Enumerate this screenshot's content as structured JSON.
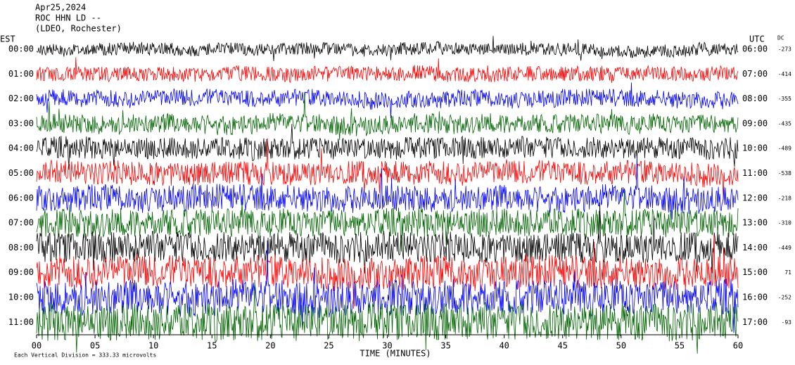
{
  "chart_data": {
    "type": "helicorder",
    "title_lines": [
      "Apr25,2024",
      "ROC HHN LD --",
      "(LDEO, Rochester)"
    ],
    "left_label": "EST",
    "right_label": "UTC",
    "dc_label": "DC",
    "x_label": "TIME (MINUTES)",
    "footnote": "Each Vertical Division = 333.33 microvolts",
    "xlim": [
      0,
      60
    ],
    "xticks": [
      {
        "value": 0,
        "label": "00"
      },
      {
        "value": 5,
        "label": "05"
      },
      10,
      15,
      20,
      25,
      30,
      35,
      40,
      45,
      50,
      55,
      60
    ],
    "rows": [
      {
        "est": "00:00",
        "utc": "06:00",
        "dc": -273,
        "color": "#000000"
      },
      {
        "est": "01:00",
        "utc": "07:00",
        "dc": -414,
        "color": "#ff0000"
      },
      {
        "est": "02:00",
        "utc": "08:00",
        "dc": -355,
        "color": "#0000ff"
      },
      {
        "est": "03:00",
        "utc": "09:00",
        "dc": -435,
        "color": "#006400"
      },
      {
        "est": "04:00",
        "utc": "10:00",
        "dc": -489,
        "color": "#000000"
      },
      {
        "est": "05:00",
        "utc": "11:00",
        "dc": -538,
        "color": "#ff0000"
      },
      {
        "est": "06:00",
        "utc": "12:00",
        "dc": -218,
        "color": "#0000ff"
      },
      {
        "est": "07:00",
        "utc": "13:00",
        "dc": -310,
        "color": "#006400"
      },
      {
        "est": "08:00",
        "utc": "14:00",
        "dc": -449,
        "color": "#000000"
      },
      {
        "est": "09:00",
        "utc": "15:00",
        "dc": 71,
        "color": "#ff0000"
      },
      {
        "est": "10:00",
        "utc": "16:00",
        "dc": -252,
        "color": "#0000ff"
      },
      {
        "est": "11:00",
        "utc": "17:00",
        "dc": -93,
        "color": "#006400"
      }
    ]
  }
}
